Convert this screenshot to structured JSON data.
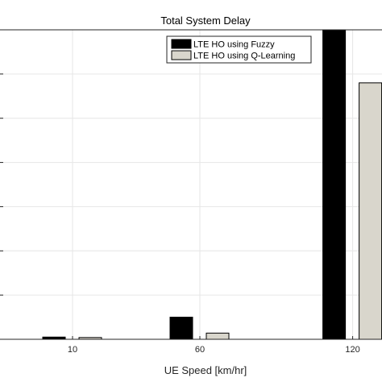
{
  "chart_data": {
    "type": "bar",
    "title": "Total System Delay",
    "xlabel": "UE Speed [km/hr]",
    "ylabel": "",
    "categories": [
      "10",
      "60",
      "120"
    ],
    "series": [
      {
        "name": "LTE HO using Fuzzy",
        "color": "#000000",
        "values": [
          0.5,
          5.0,
          70.0
        ]
      },
      {
        "name": "LTE HO using Q-Learning",
        "color": "#d9d6cc",
        "values": [
          0.4,
          1.4,
          58.0
        ]
      }
    ],
    "ylim": [
      0,
      70
    ],
    "yticks": [
      0,
      10,
      20,
      30,
      40,
      50,
      60,
      70
    ],
    "xlim": [
      -10,
      130
    ],
    "grid": true,
    "legend_position": "top-right"
  }
}
